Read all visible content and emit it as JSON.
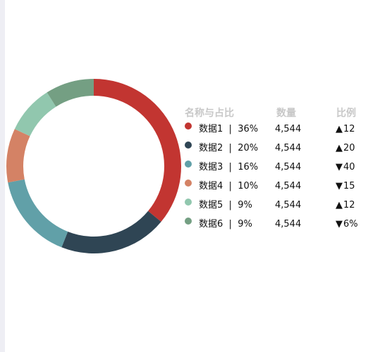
{
  "chart_data": {
    "type": "pie",
    "variant": "donut",
    "categories": [
      "数据1",
      "数据2",
      "数据3",
      "数据4",
      "数据5",
      "数据6"
    ],
    "values": [
      36,
      20,
      16,
      10,
      9,
      9
    ],
    "unit": "%",
    "colors": [
      "#c23531",
      "#2f4554",
      "#61a0a8",
      "#d48265",
      "#91c7ae",
      "#749f83"
    ],
    "legend_headers": [
      "名称与占比",
      "数量",
      "比例"
    ],
    "rows": [
      {
        "name": "数据1",
        "percent": "36%",
        "count": "4,544",
        "ratio": "12",
        "trend": "up"
      },
      {
        "name": "数据2",
        "percent": "20%",
        "count": "4,544",
        "ratio": "20",
        "trend": "up"
      },
      {
        "name": "数据3",
        "percent": "16%",
        "count": "4,544",
        "ratio": "40",
        "trend": "down"
      },
      {
        "name": "数据4",
        "percent": "10%",
        "count": "4,544",
        "ratio": "15",
        "trend": "down"
      },
      {
        "name": "数据5",
        "percent": "9%",
        "count": "4,544",
        "ratio": "12",
        "trend": "up"
      },
      {
        "name": "数据6",
        "percent": "9%",
        "count": "4,544",
        "ratio": "6%",
        "trend": "down"
      }
    ],
    "trend_colors": {
      "up": "#1bbf86",
      "down": "#f0643c"
    }
  }
}
